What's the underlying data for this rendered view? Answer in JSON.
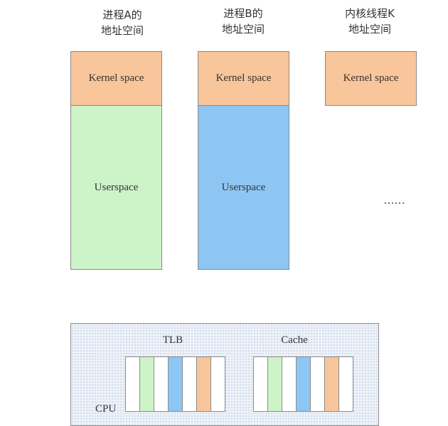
{
  "columns": [
    {
      "title_line1": "进程A的",
      "title_line2": "地址空间",
      "kernel_label": "Kernel space",
      "user_label": "Userspace"
    },
    {
      "title_line1": "进程B的",
      "title_line2": "地址空间",
      "kernel_label": "Kernel space",
      "user_label": "Userspace"
    },
    {
      "title_line1": "内核线程K",
      "title_line2": "地址空间",
      "kernel_label": "Kernel space"
    }
  ],
  "ellipsis": "......",
  "cpu": {
    "label": "CPU",
    "tlb_label": "TLB",
    "cache_label": "Cache"
  },
  "colors": {
    "kernel": "#f9c59a",
    "user_a": "#cdf3c8",
    "user_b": "#8ec6f3"
  }
}
